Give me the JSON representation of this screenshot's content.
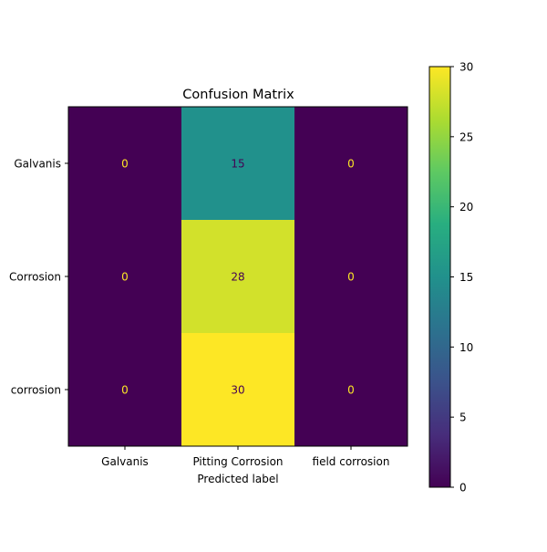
{
  "chart_data": {
    "type": "heatmap",
    "title": "Confusion Matrix",
    "xlabel": "Predicted label",
    "ylabel": "",
    "x_categories": [
      "Galvanis",
      "Pitting Corrosion",
      "field corrosion"
    ],
    "y_categories": [
      "Galvanis",
      "Corrosion",
      "corrosion"
    ],
    "values": [
      [
        0,
        15,
        0
      ],
      [
        0,
        28,
        0
      ],
      [
        0,
        30,
        0
      ]
    ],
    "colormap": "viridis",
    "vmin": 0,
    "vmax": 30,
    "colorbar_ticks": [
      0,
      5,
      10,
      15,
      20,
      25,
      30
    ]
  }
}
